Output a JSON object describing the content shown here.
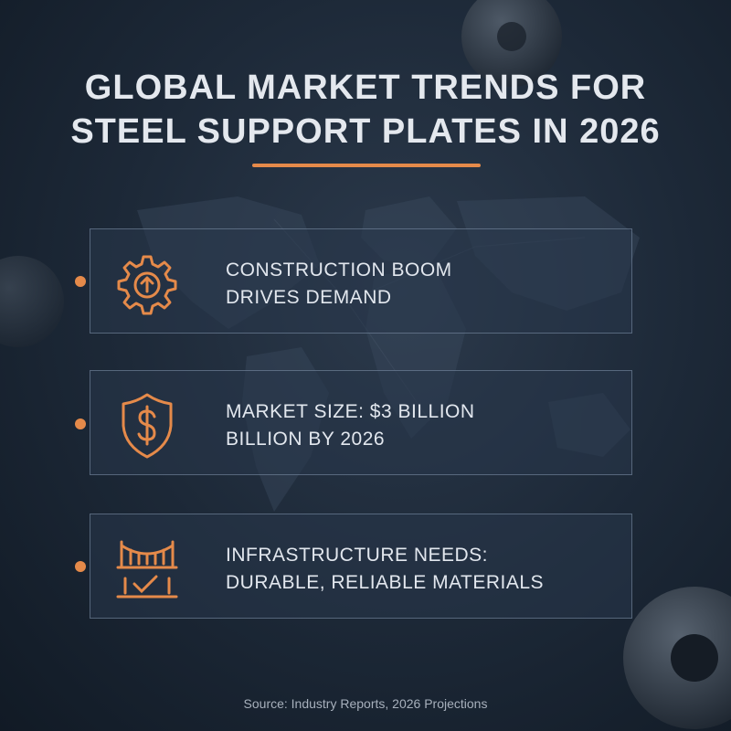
{
  "title": {
    "line1": "GLOBAL MARKET TRENDS FOR",
    "line2": "STEEL SUPPORT PLATES IN 2026"
  },
  "accent_color": "#e58a4a",
  "cards": [
    {
      "icon": "gear-up-arrow-icon",
      "line1": "CONSTRUCTION BOOM",
      "line2": "DRIVES DEMAND"
    },
    {
      "icon": "shield-dollar-icon",
      "line1": "MARKET SIZE: $3 BILLION",
      "line2": "BILLION BY 2026"
    },
    {
      "icon": "bridge-check-icon",
      "line1": "INFRASTRUCTURE NEEDS:",
      "line2": "DURABLE, RELIABLE MATERIALS"
    }
  ],
  "source": "Source: Industry Reports, 2026 Projections"
}
